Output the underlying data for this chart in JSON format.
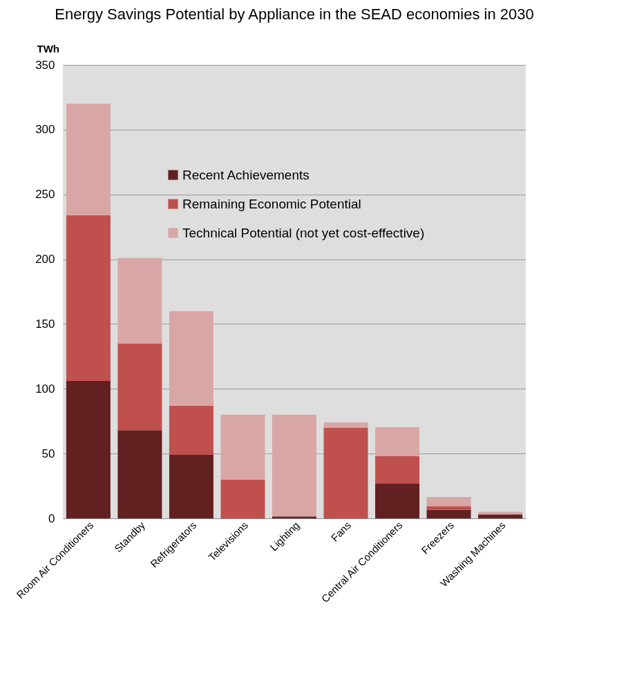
{
  "chart_data": {
    "type": "bar",
    "title": "Energy Savings Potential by Appliance in the SEAD economies in 2030",
    "ylabel": "TWh",
    "categories": [
      "Room Air Conditioners",
      "Standby",
      "Refrigerators",
      "Televisions",
      "Lighting",
      "Fans",
      "Central Air Conditioners",
      "Freezers",
      "Washing Machines"
    ],
    "stacked": true,
    "series": [
      {
        "name": "Recent Achievements",
        "color": "#622020",
        "values": [
          106,
          68,
          49,
          0,
          1.5,
          0,
          27,
          6.5,
          3
        ]
      },
      {
        "name": "Remaining Economic Potential",
        "color": "#c0504d",
        "values": [
          128,
          67,
          38,
          30,
          0,
          70,
          21,
          3,
          0
        ]
      },
      {
        "name": "Technical Potential (not yet cost-effective)",
        "color": "#d9a6a6",
        "values": [
          86,
          66,
          73,
          50,
          78.5,
          4,
          22.5,
          7,
          2
        ]
      }
    ],
    "ylim": [
      0,
      350
    ],
    "yticks": [
      0,
      50,
      100,
      150,
      200,
      250,
      300,
      350
    ],
    "grid": "y",
    "legend": "top"
  }
}
